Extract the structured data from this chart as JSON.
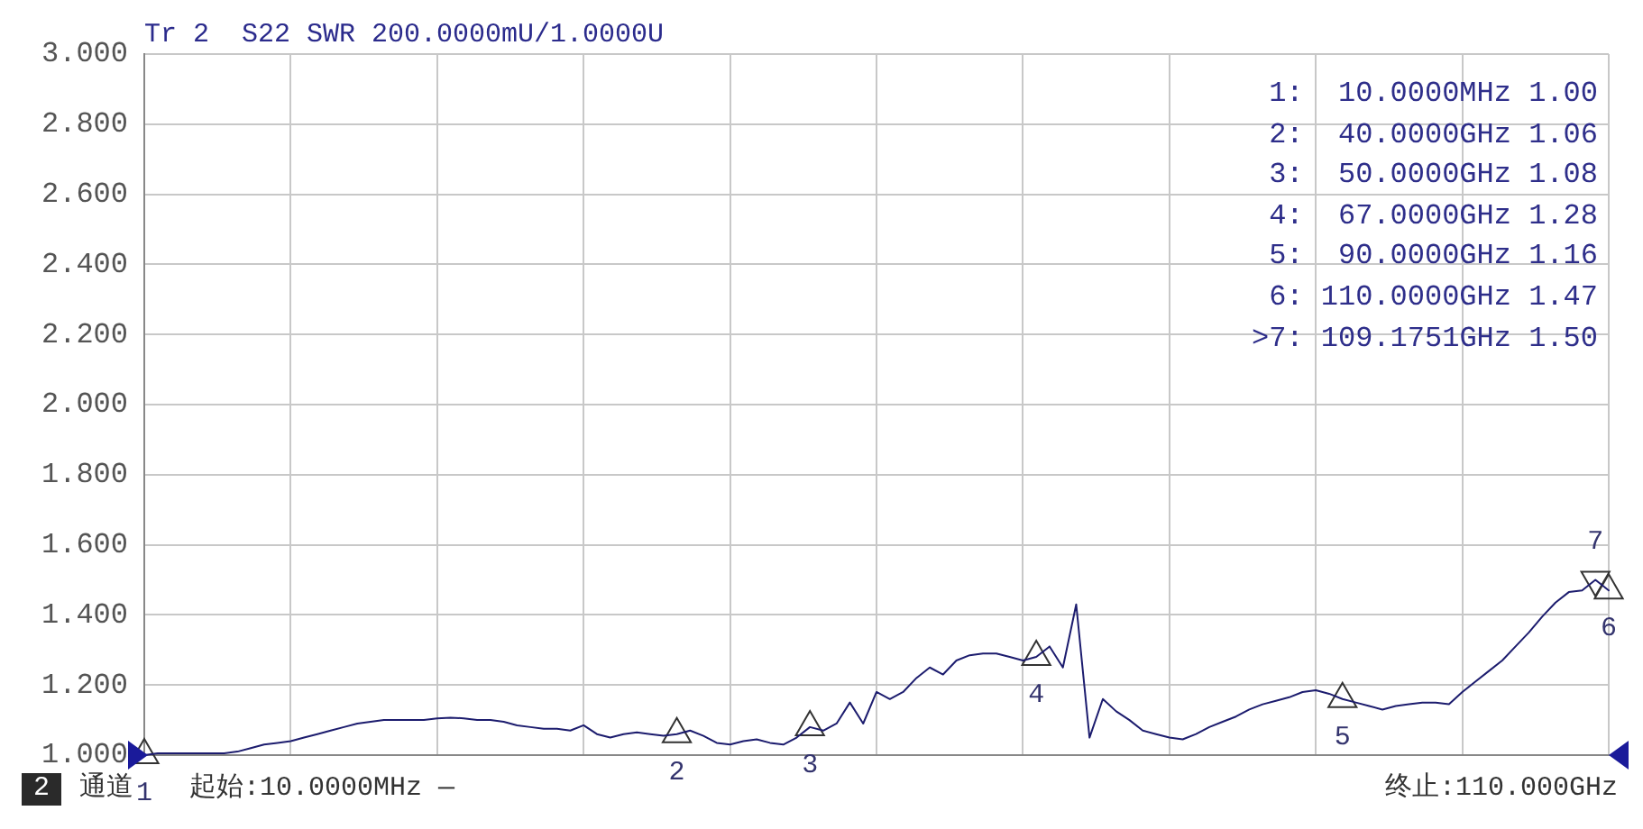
{
  "chart_data": {
    "type": "line",
    "title": "Tr 2  S22 SWR 200.0000mU/1.0000U",
    "categories": [
      null,
      null,
      null,
      null,
      null,
      null,
      null,
      null,
      null,
      null,
      null,
      null,
      null,
      null,
      null,
      null,
      null,
      null,
      null,
      null,
      null,
      null,
      null,
      null,
      null,
      null,
      null,
      null,
      null,
      null,
      null,
      null,
      null,
      null,
      null,
      null,
      null,
      null,
      null,
      null,
      null,
      null,
      null,
      null,
      null,
      null,
      null,
      null,
      null,
      null,
      null,
      null,
      null,
      null,
      null,
      null,
      null,
      null,
      null,
      null,
      null,
      null,
      null,
      null,
      null,
      null,
      null,
      null,
      null,
      null,
      null,
      null,
      null,
      null,
      null,
      null,
      null,
      null,
      null,
      null,
      null,
      null,
      null,
      null,
      null,
      null,
      null,
      null,
      null,
      null,
      null,
      null,
      null,
      null,
      null,
      null,
      null,
      null,
      null,
      null,
      null,
      null,
      null,
      null,
      null,
      null,
      null,
      null,
      null,
      null,
      null
    ],
    "ylim": [
      1,
      3
    ],
    "yticks": [
      {
        "value": 1,
        "label": "1.000"
      },
      {
        "value": 1.2,
        "label": "1.200"
      },
      {
        "value": 1.4,
        "label": "1.400"
      },
      {
        "value": 1.6,
        "label": "1.600"
      },
      {
        "value": 1.8,
        "label": "1.800"
      },
      {
        "value": 2,
        "label": "2.000"
      },
      {
        "value": 2.2,
        "label": "2.200"
      },
      {
        "value": 2.4,
        "label": "2.400"
      },
      {
        "value": 2.6,
        "label": "2.600"
      },
      {
        "value": 2.8,
        "label": "2.800"
      },
      {
        "value": 3,
        "label": "3.000"
      }
    ],
    "grid": true,
    "legend": false,
    "tick_labels": "y",
    "series": [
      {
        "color": "#1c1c6e",
        "marker": "none",
        "values": [
          1.0,
          1.005,
          1.005,
          1.005,
          1.005,
          1.005,
          1.005,
          1.01,
          1.02,
          1.03,
          1.035,
          1.04,
          1.05,
          1.06,
          1.07,
          1.08,
          1.09,
          1.095,
          1.1,
          1.1,
          1.1,
          1.1,
          1.105,
          1.107,
          1.105,
          1.1,
          1.1,
          1.095,
          1.085,
          1.08,
          1.075,
          1.075,
          1.07,
          1.085,
          1.06,
          1.05,
          1.06,
          1.065,
          1.06,
          1.055,
          1.06,
          1.07,
          1.055,
          1.035,
          1.03,
          1.04,
          1.045,
          1.035,
          1.03,
          1.05,
          1.08,
          1.07,
          1.09,
          1.15,
          1.09,
          1.18,
          1.16,
          1.18,
          1.22,
          1.25,
          1.23,
          1.27,
          1.285,
          1.29,
          1.29,
          1.28,
          1.27,
          1.28,
          1.31,
          1.25,
          1.43,
          1.05,
          1.16,
          1.125,
          1.1,
          1.07,
          1.06,
          1.05,
          1.045,
          1.06,
          1.08,
          1.095,
          1.11,
          1.13,
          1.145,
          1.155,
          1.165,
          1.18,
          1.185,
          1.175,
          1.16,
          1.15,
          1.14,
          1.13,
          1.14,
          1.145,
          1.15,
          1.15,
          1.145,
          1.18,
          1.21,
          1.24,
          1.27,
          1.31,
          1.35,
          1.395,
          1.435,
          1.465,
          1.47,
          1.5,
          1.47
        ]
      },
      {
        "type": "scatter",
        "name": "1",
        "color": "#333333",
        "marker": "triangle",
        "values": [
          1.0,
          null,
          null,
          null,
          null,
          null,
          null,
          null,
          null,
          null,
          null,
          null,
          null,
          null,
          null,
          null,
          null,
          null,
          null,
          null,
          null,
          null,
          null,
          null,
          null,
          null,
          null,
          null,
          null,
          null,
          null,
          null,
          null,
          null,
          null,
          null,
          null,
          null,
          null,
          null,
          null,
          null,
          null,
          null,
          null,
          null,
          null,
          null,
          null,
          null,
          null,
          null,
          null,
          null,
          null,
          null,
          null,
          null,
          null,
          null,
          null,
          null,
          null,
          null,
          null,
          null,
          null,
          null,
          null,
          null,
          null,
          null,
          null,
          null,
          null,
          null,
          null,
          null,
          null,
          null,
          null,
          null,
          null,
          null,
          null,
          null,
          null,
          null,
          null,
          null,
          null,
          null,
          null,
          null,
          null,
          null,
          null,
          null,
          null,
          null,
          null,
          null,
          null,
          null,
          null,
          null,
          null,
          null,
          null,
          null,
          null
        ]
      },
      {
        "type": "scatter",
        "name": "2",
        "color": "#333333",
        "marker": "triangle",
        "values": [
          null,
          null,
          null,
          null,
          null,
          null,
          null,
          null,
          null,
          null,
          null,
          null,
          null,
          null,
          null,
          null,
          null,
          null,
          null,
          null,
          null,
          null,
          null,
          null,
          null,
          null,
          null,
          null,
          null,
          null,
          null,
          null,
          null,
          null,
          null,
          null,
          null,
          null,
          null,
          null,
          1.06,
          null,
          null,
          null,
          null,
          null,
          null,
          null,
          null,
          null,
          null,
          null,
          null,
          null,
          null,
          null,
          null,
          null,
          null,
          null,
          null,
          null,
          null,
          null,
          null,
          null,
          null,
          null,
          null,
          null,
          null,
          null,
          null,
          null,
          null,
          null,
          null,
          null,
          null,
          null,
          null,
          null,
          null,
          null,
          null,
          null,
          null,
          null,
          null,
          null,
          null,
          null,
          null,
          null,
          null,
          null,
          null,
          null,
          null,
          null,
          null,
          null,
          null,
          null,
          null,
          null,
          null,
          null,
          null,
          null,
          null
        ]
      },
      {
        "type": "scatter",
        "name": "3",
        "color": "#333333",
        "marker": "triangle",
        "values": [
          null,
          null,
          null,
          null,
          null,
          null,
          null,
          null,
          null,
          null,
          null,
          null,
          null,
          null,
          null,
          null,
          null,
          null,
          null,
          null,
          null,
          null,
          null,
          null,
          null,
          null,
          null,
          null,
          null,
          null,
          null,
          null,
          null,
          null,
          null,
          null,
          null,
          null,
          null,
          null,
          null,
          null,
          null,
          null,
          null,
          null,
          null,
          null,
          null,
          null,
          1.08,
          null,
          null,
          null,
          null,
          null,
          null,
          null,
          null,
          null,
          null,
          null,
          null,
          null,
          null,
          null,
          null,
          null,
          null,
          null,
          null,
          null,
          null,
          null,
          null,
          null,
          null,
          null,
          null,
          null,
          null,
          null,
          null,
          null,
          null,
          null,
          null,
          null,
          null,
          null,
          null,
          null,
          null,
          null,
          null,
          null,
          null,
          null,
          null,
          null,
          null,
          null,
          null,
          null,
          null,
          null,
          null,
          null,
          null,
          null,
          null
        ]
      },
      {
        "type": "scatter",
        "name": "4",
        "color": "#333333",
        "marker": "triangle",
        "values": [
          null,
          null,
          null,
          null,
          null,
          null,
          null,
          null,
          null,
          null,
          null,
          null,
          null,
          null,
          null,
          null,
          null,
          null,
          null,
          null,
          null,
          null,
          null,
          null,
          null,
          null,
          null,
          null,
          null,
          null,
          null,
          null,
          null,
          null,
          null,
          null,
          null,
          null,
          null,
          null,
          null,
          null,
          null,
          null,
          null,
          null,
          null,
          null,
          null,
          null,
          null,
          null,
          null,
          null,
          null,
          null,
          null,
          null,
          null,
          null,
          null,
          null,
          null,
          null,
          null,
          null,
          null,
          1.28,
          null,
          null,
          null,
          null,
          null,
          null,
          null,
          null,
          null,
          null,
          null,
          null,
          null,
          null,
          null,
          null,
          null,
          null,
          null,
          null,
          null,
          null,
          null,
          null,
          null,
          null,
          null,
          null,
          null,
          null,
          null,
          null,
          null,
          null,
          null,
          null,
          null,
          null,
          null,
          null,
          null,
          null,
          null
        ]
      },
      {
        "type": "scatter",
        "name": "5",
        "color": "#333333",
        "marker": "triangle",
        "values": [
          null,
          null,
          null,
          null,
          null,
          null,
          null,
          null,
          null,
          null,
          null,
          null,
          null,
          null,
          null,
          null,
          null,
          null,
          null,
          null,
          null,
          null,
          null,
          null,
          null,
          null,
          null,
          null,
          null,
          null,
          null,
          null,
          null,
          null,
          null,
          null,
          null,
          null,
          null,
          null,
          null,
          null,
          null,
          null,
          null,
          null,
          null,
          null,
          null,
          null,
          null,
          null,
          null,
          null,
          null,
          null,
          null,
          null,
          null,
          null,
          null,
          null,
          null,
          null,
          null,
          null,
          null,
          null,
          null,
          null,
          null,
          null,
          null,
          null,
          null,
          null,
          null,
          null,
          null,
          null,
          null,
          null,
          null,
          null,
          null,
          null,
          null,
          null,
          null,
          null,
          1.16,
          null,
          null,
          null,
          null,
          null,
          null,
          null,
          null,
          null,
          null,
          null,
          null,
          null,
          null,
          null,
          null,
          null,
          null,
          null,
          null
        ]
      },
      {
        "type": "scatter",
        "name": "6",
        "color": "#333333",
        "marker": "triangle",
        "values": [
          null,
          null,
          null,
          null,
          null,
          null,
          null,
          null,
          null,
          null,
          null,
          null,
          null,
          null,
          null,
          null,
          null,
          null,
          null,
          null,
          null,
          null,
          null,
          null,
          null,
          null,
          null,
          null,
          null,
          null,
          null,
          null,
          null,
          null,
          null,
          null,
          null,
          null,
          null,
          null,
          null,
          null,
          null,
          null,
          null,
          null,
          null,
          null,
          null,
          null,
          null,
          null,
          null,
          null,
          null,
          null,
          null,
          null,
          null,
          null,
          null,
          null,
          null,
          null,
          null,
          null,
          null,
          null,
          null,
          null,
          null,
          null,
          null,
          null,
          null,
          null,
          null,
          null,
          null,
          null,
          null,
          null,
          null,
          null,
          null,
          null,
          null,
          null,
          null,
          null,
          null,
          null,
          null,
          null,
          null,
          null,
          null,
          null,
          null,
          null,
          null,
          null,
          null,
          null,
          null,
          null,
          null,
          null,
          null,
          null,
          1.47
        ]
      },
      {
        "type": "scatter",
        "name": "7",
        "color": "#333333",
        "marker": "triangle",
        "values": [
          null,
          null,
          null,
          null,
          null,
          null,
          null,
          null,
          null,
          null,
          null,
          null,
          null,
          null,
          null,
          null,
          null,
          null,
          null,
          null,
          null,
          null,
          null,
          null,
          null,
          null,
          null,
          null,
          null,
          null,
          null,
          null,
          null,
          null,
          null,
          null,
          null,
          null,
          null,
          null,
          null,
          null,
          null,
          null,
          null,
          null,
          null,
          null,
          null,
          null,
          null,
          null,
          null,
          null,
          null,
          null,
          null,
          null,
          null,
          null,
          null,
          null,
          null,
          null,
          null,
          null,
          null,
          null,
          null,
          null,
          null,
          null,
          null,
          null,
          null,
          null,
          null,
          null,
          null,
          null,
          null,
          null,
          null,
          null,
          null,
          null,
          null,
          null,
          null,
          null,
          null,
          null,
          null,
          null,
          null,
          null,
          null,
          null,
          null,
          null,
          null,
          null,
          null,
          null,
          null,
          null,
          null,
          null,
          null,
          1.5,
          null
        ]
      }
    ],
    "annotations": [
      "1:  10.0000MHz 1.00",
      "2:  40.0000GHz 1.06",
      "3:  50.0000GHz 1.08",
      "4:  67.0000GHz 1.28",
      "5:  90.0000GHz 1.16",
      "6: 110.0000GHz 1.47",
      ">7: 109.1751GHz 1.50",
      "2",
      "通道",
      "起始:10.0000MHz —",
      "终止:110.000GHz"
    ]
  }
}
